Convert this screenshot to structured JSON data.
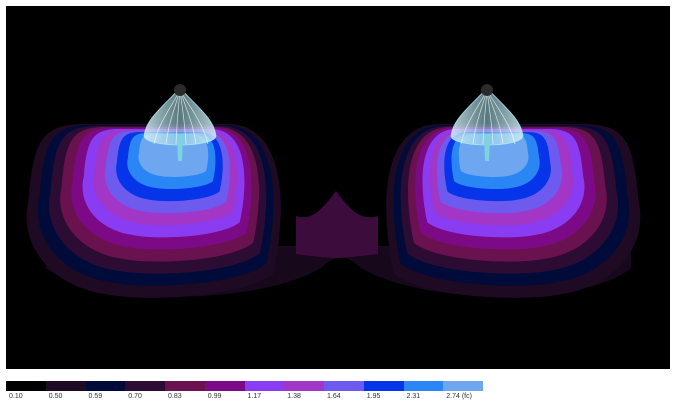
{
  "legend": {
    "steps": [
      {
        "label": "0.10",
        "color": "#000000"
      },
      {
        "label": "0.50",
        "color": "#1e0a22"
      },
      {
        "label": "0.59",
        "color": "#000b3a"
      },
      {
        "label": "0.70",
        "color": "#2c0c33"
      },
      {
        "label": "0.83",
        "color": "#6a1150"
      },
      {
        "label": "0.99",
        "color": "#7c0a86"
      },
      {
        "label": "1.17",
        "color": "#8a3cf2"
      },
      {
        "label": "1.38",
        "color": "#a236c6"
      },
      {
        "label": "1.64",
        "color": "#6d5bf0"
      },
      {
        "label": "1.95",
        "color": "#0634e8"
      },
      {
        "label": "2.31",
        "color": "#2a86f4"
      },
      {
        "label": "2.74 (fc)",
        "color": "#6ea6f0"
      }
    ]
  },
  "scene": {
    "background_color": "#000000",
    "fixture_count": 2,
    "fixture_color": "#a8e6ef"
  }
}
